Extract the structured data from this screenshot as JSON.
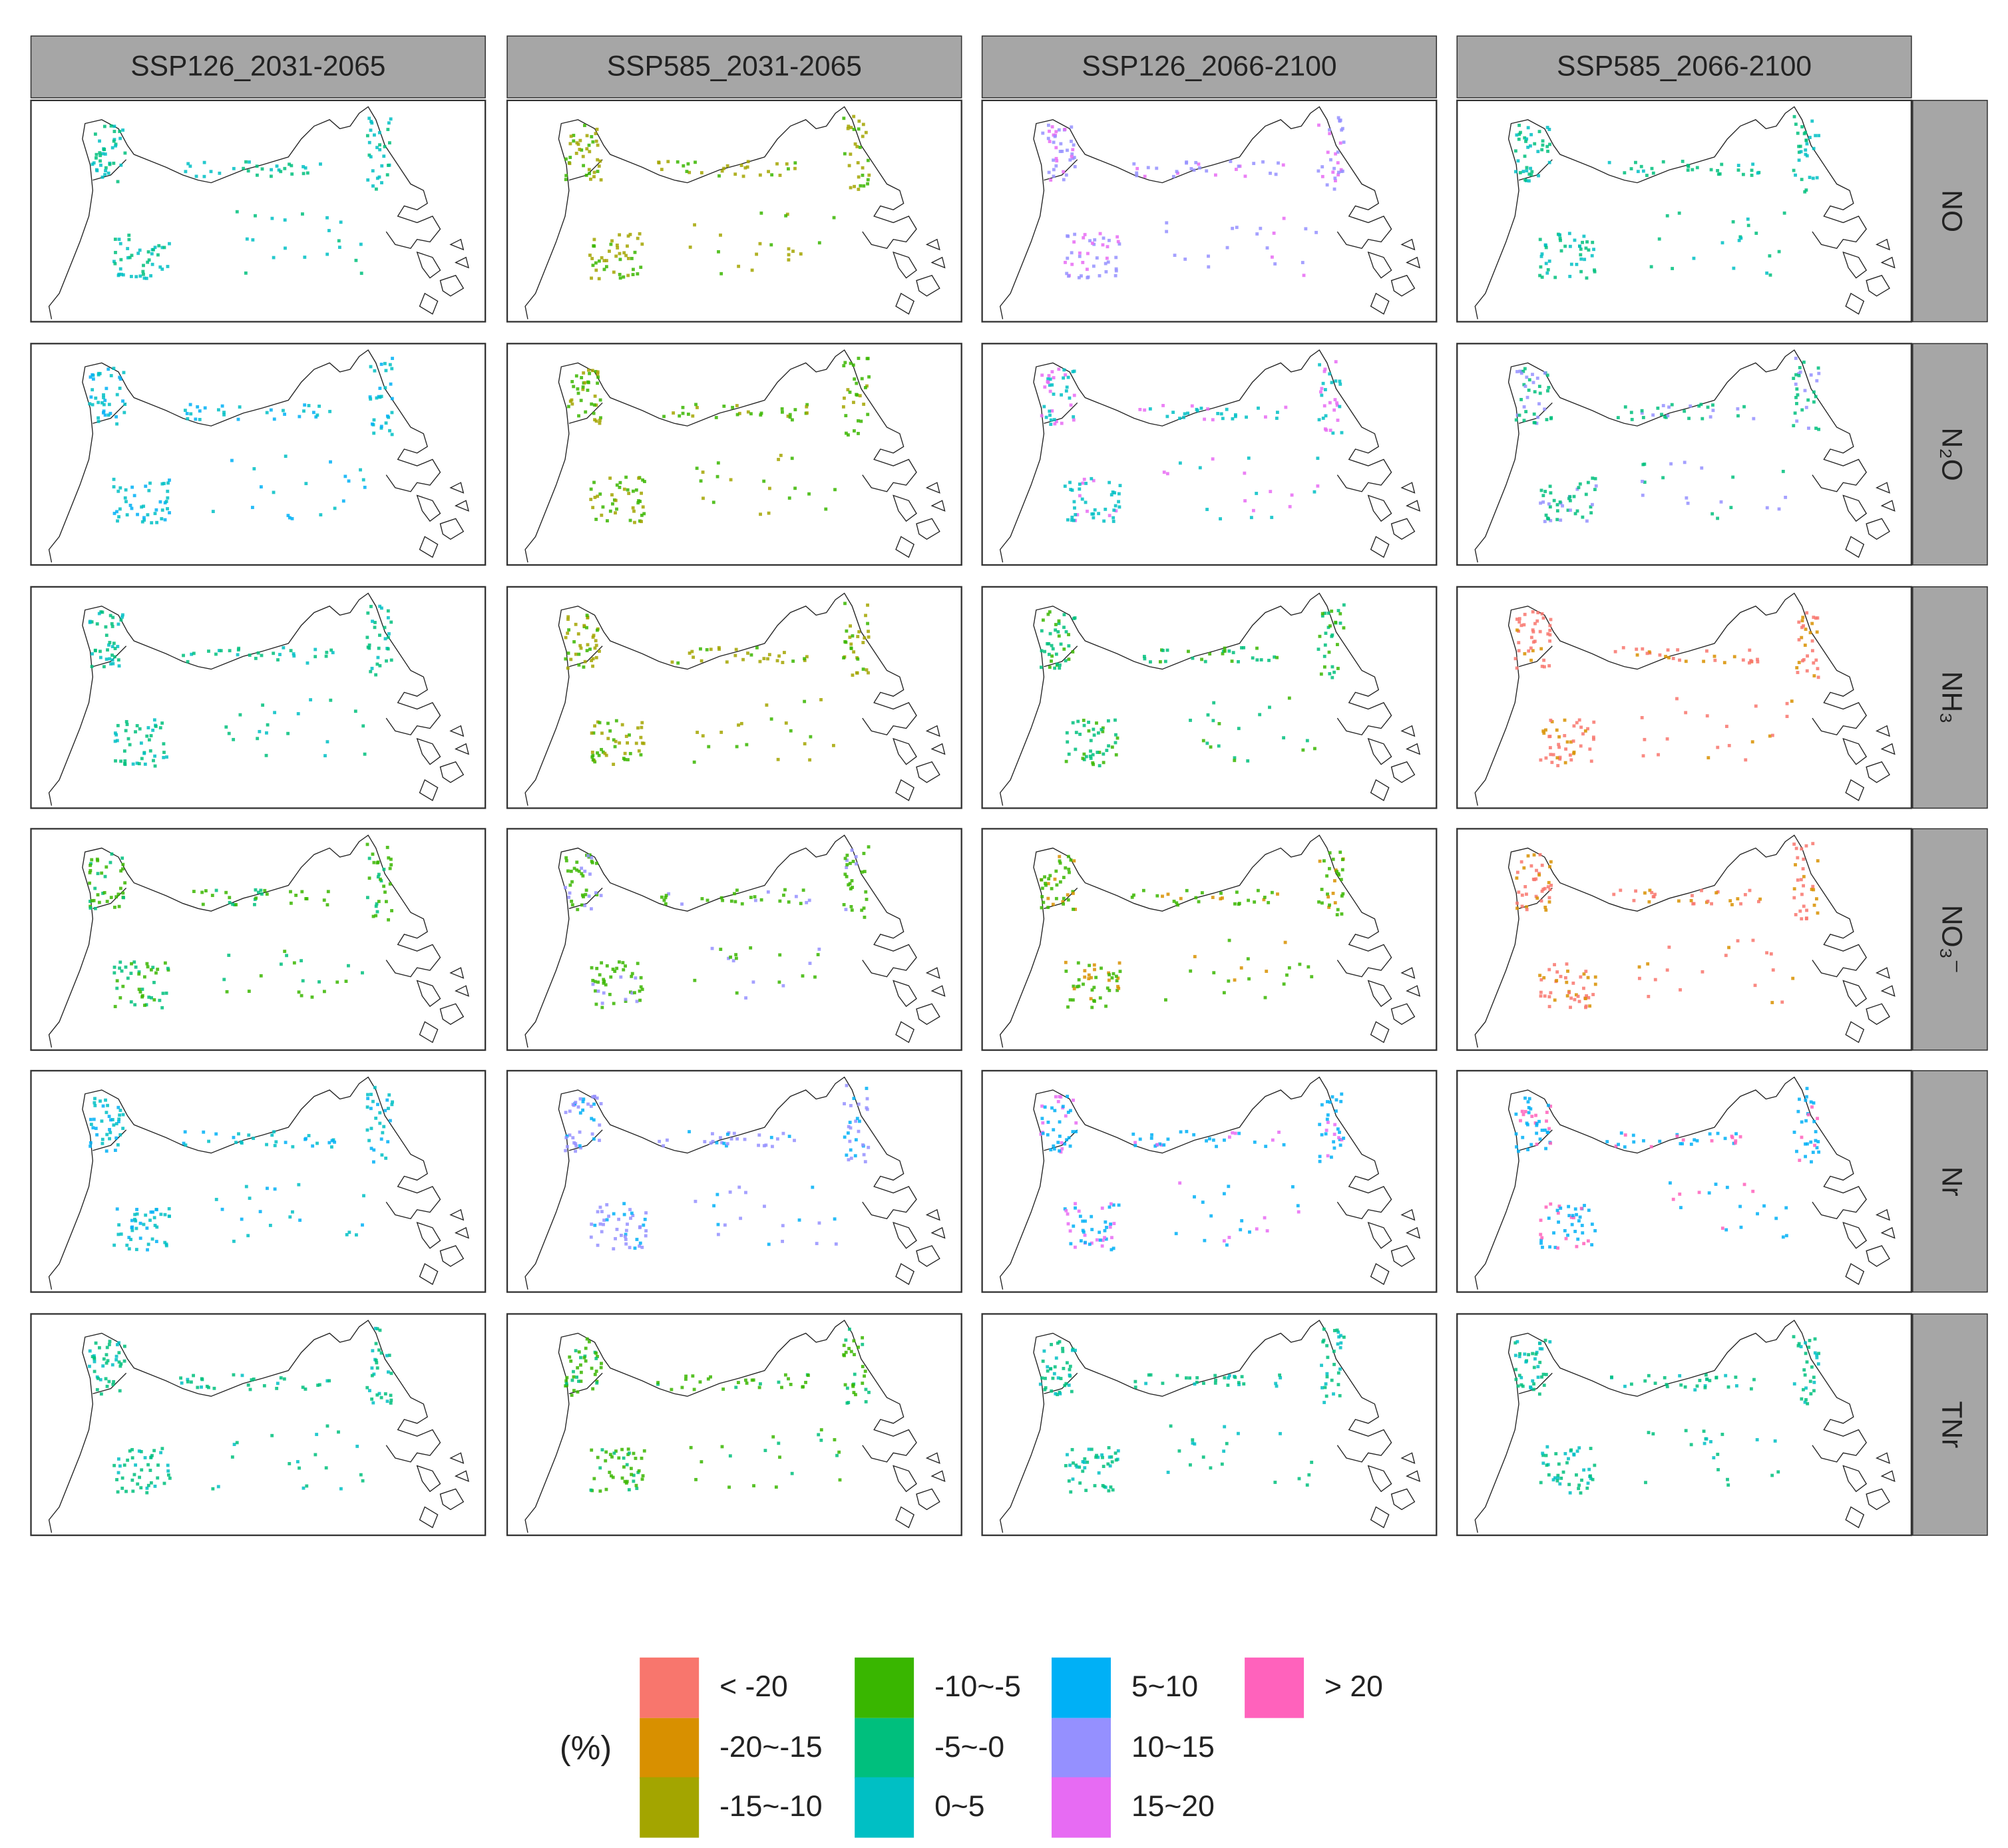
{
  "columns": [
    "SSP126_2031-2065",
    "SSP585_2031-2065",
    "SSP126_2066-2100",
    "SSP585_2066-2100"
  ],
  "rows": [
    "NO",
    "N₂O",
    "NH₃",
    "NO₃⁻",
    "Nr",
    "TNr"
  ],
  "legend": {
    "title": "(%)",
    "items": [
      {
        "label": "< -20",
        "color": "#F8766D"
      },
      {
        "label": "-20~-15",
        "color": "#D89000"
      },
      {
        "label": "-15~-10",
        "color": "#A3A500"
      },
      {
        "label": "-10~-5",
        "color": "#39B600"
      },
      {
        "label": "-5~-0",
        "color": "#00BF7D"
      },
      {
        "label": "0~5",
        "color": "#00BFC4"
      },
      {
        "label": "5~10",
        "color": "#00B0F6"
      },
      {
        "label": "10~15",
        "color": "#9590FF"
      },
      {
        "label": "15~20",
        "color": "#E76BF3"
      },
      {
        "label": "> 20",
        "color": "#FF62BC"
      }
    ]
  }
}
